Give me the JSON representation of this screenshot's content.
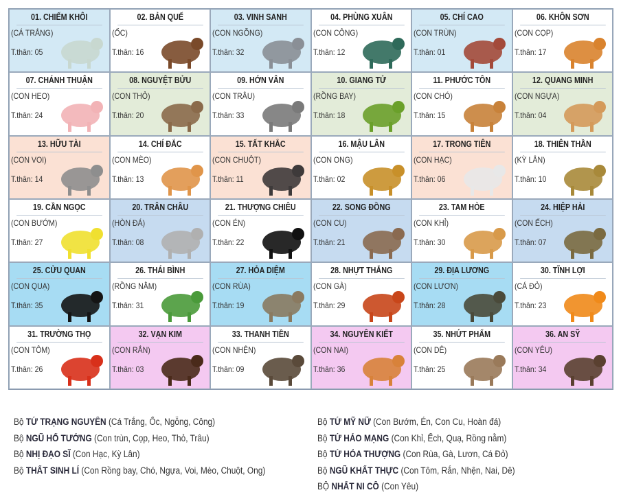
{
  "colors": {
    "white": "#ffffff",
    "blue": "#d3e9f5",
    "green": "#e3ecd9",
    "peach": "#fbe1d4",
    "steel": "#c6dbf0",
    "cyan": "#a7dcf3",
    "pink": "#f4c9f1"
  },
  "cells": [
    {
      "title": "01. CHIẾM KHÔI",
      "animal": "(CÁ TRẮNG)",
      "tthan": "T.thân: 05",
      "bg": "blue",
      "icon": "fish-icon",
      "color": "#c8d8d0"
    },
    {
      "title": "02. BẢN QUẾ",
      "animal": "(ỐC)",
      "tthan": "T.thân: 16",
      "bg": "white",
      "icon": "snail-icon",
      "color": "#7a4a2a"
    },
    {
      "title": "03. VINH SANH",
      "animal": "(CON NGỖNG)",
      "tthan": "T.thân: 32",
      "bg": "blue",
      "icon": "goose-icon",
      "color": "#8a8f96"
    },
    {
      "title": "04. PHÙNG XUÂN",
      "animal": "(CON CÔNG)",
      "tthan": "T.thân: 12",
      "bg": "white",
      "icon": "peacock-icon",
      "color": "#2f6a5a"
    },
    {
      "title": "05. CHÍ CAO",
      "animal": "(CON TRÙN)",
      "tthan": "T.thân: 01",
      "bg": "blue",
      "icon": "worm-icon",
      "color": "#a34a3a"
    },
    {
      "title": "06. KHÔN SƠN",
      "animal": "(CON CỌP)",
      "tthan": "T.thân: 17",
      "bg": "white",
      "icon": "tiger-icon",
      "color": "#d9832e"
    },
    {
      "title": "07. CHÁNH THUẬN",
      "animal": "(CON HEO)",
      "tthan": "T.thân: 24",
      "bg": "white",
      "icon": "pig-icon",
      "color": "#f2b3b6"
    },
    {
      "title": "08. NGUYỆT BỬU",
      "animal": "(CON THỎ)",
      "tthan": "T.thân: 20",
      "bg": "green",
      "icon": "rabbit-icon",
      "color": "#8a6a4a"
    },
    {
      "title": "09. HỚN VÂN",
      "animal": "(CON TRÂU)",
      "tthan": "T.thân: 33",
      "bg": "white",
      "icon": "buffalo-icon",
      "color": "#7a7a7a"
    },
    {
      "title": "10. GIANG TỬ",
      "animal": "(RỒNG BAY)",
      "tthan": "T.thân: 18",
      "bg": "green",
      "icon": "flying-dragon-icon",
      "color": "#6aa02a"
    },
    {
      "title": "11. PHƯỚC TÔN",
      "animal": "(CON CHÓ)",
      "tthan": "T.thân: 15",
      "bg": "white",
      "icon": "dog-icon",
      "color": "#c8823a"
    },
    {
      "title": "12. QUANG MINH",
      "animal": "(CON NGỰA)",
      "tthan": "T.thân: 04",
      "bg": "green",
      "icon": "horse-icon",
      "color": "#d49a5a"
    },
    {
      "title": "13. HỮU TÀI",
      "animal": "(CON VOI)",
      "tthan": "T.thân: 14",
      "bg": "peach",
      "icon": "elephant-icon",
      "color": "#8e8e8e"
    },
    {
      "title": "14. CHÍ ĐẮC",
      "animal": "(CON MÈO)",
      "tthan": "T.thân: 13",
      "bg": "white",
      "icon": "cat-icon",
      "color": "#e0954a"
    },
    {
      "title": "15. TẤT KHẮC",
      "animal": "(CON CHUỘT)",
      "tthan": "T.thân: 11",
      "bg": "peach",
      "icon": "rat-icon",
      "color": "#3e3a3a"
    },
    {
      "title": "16. MẬU LÂN",
      "animal": "(CON ONG)",
      "tthan": "T.thân: 02",
      "bg": "white",
      "icon": "bee-icon",
      "color": "#c8902a"
    },
    {
      "title": "17. TRONG TIÊN",
      "animal": "(CON HẠC)",
      "tthan": "T.thân: 06",
      "bg": "peach",
      "icon": "crane-icon",
      "color": "#e8e8e8"
    },
    {
      "title": "18. THIÊN THẦN",
      "animal": "(KỲ LÂN)",
      "tthan": "T.thân: 10",
      "bg": "white",
      "icon": "qilin-icon",
      "color": "#a8893a"
    },
    {
      "title": "19. CẦN NGỌC",
      "animal": "(CON BƯỚM)",
      "tthan": "T.thân: 27",
      "bg": "white",
      "icon": "butterfly-icon",
      "color": "#f0e030"
    },
    {
      "title": "20. TRÂN CHÂU",
      "animal": "(HÒN ĐÁ)",
      "tthan": "T.thân: 08",
      "bg": "steel",
      "icon": "rock-icon",
      "color": "#b0b0b0"
    },
    {
      "title": "21. THƯỢNG CHIÊU",
      "animal": "(CON ÉN)",
      "tthan": "T.thân: 22",
      "bg": "white",
      "icon": "swallow-icon",
      "color": "#111111"
    },
    {
      "title": "22. SONG ĐỒNG",
      "animal": "(CON CU)",
      "tthan": "T.thân: 21",
      "bg": "steel",
      "icon": "dove-icon",
      "color": "#8a6a50"
    },
    {
      "title": "23. TAM HÒE",
      "animal": "(CON KHỈ)",
      "tthan": "T.thân: 30",
      "bg": "white",
      "icon": "monkey-icon",
      "color": "#d89a4a"
    },
    {
      "title": "24. HIỆP HẢI",
      "animal": "(CON ẾCH)",
      "tthan": "T.thân: 07",
      "bg": "steel",
      "icon": "frog-icon",
      "color": "#7a6a40"
    },
    {
      "title": "25. CỬU QUAN",
      "animal": "(CON QUẠ)",
      "tthan": "T.thân: 35",
      "bg": "cyan",
      "icon": "crow-icon",
      "color": "#151515"
    },
    {
      "title": "26. THÁI BÌNH",
      "animal": "(RỒNG NẰM)",
      "tthan": "T.thân: 31",
      "bg": "white",
      "icon": "lying-dragon-icon",
      "color": "#4a9a3a"
    },
    {
      "title": "27. HỎA DIỆM",
      "animal": "(CON RÙA)",
      "tthan": "T.thân: 19",
      "bg": "cyan",
      "icon": "turtle-icon",
      "color": "#8a7a60"
    },
    {
      "title": "28. NHỰT THẮNG",
      "animal": "(CON GÀ)",
      "tthan": "T.thân: 29",
      "bg": "white",
      "icon": "rooster-icon",
      "color": "#c8461a"
    },
    {
      "title": "29. ĐỊA LƯƠNG",
      "animal": "(CON LƯƠN)",
      "tthan": "T.thân: 28",
      "bg": "cyan",
      "icon": "eel-icon",
      "color": "#4a4a3a"
    },
    {
      "title": "30. TĨNH LỢI",
      "animal": "(CÁ ĐỎ)",
      "tthan": "T.thân: 23",
      "bg": "white",
      "icon": "goldfish-icon",
      "color": "#f08a1a"
    },
    {
      "title": "31. TRƯỜNG THỌ",
      "animal": "(CON TÔM)",
      "tthan": "T.thân: 26",
      "bg": "white",
      "icon": "shrimp-icon",
      "color": "#d8301a"
    },
    {
      "title": "32. VẠN KIM",
      "animal": "(CON RẮN)",
      "tthan": "T.thân: 03",
      "bg": "pink",
      "icon": "snake-icon",
      "color": "#4a2a1a"
    },
    {
      "title": "33. THANH TIỀN",
      "animal": "(CON NHỆN)",
      "tthan": "T.thân: 09",
      "bg": "white",
      "icon": "spider-icon",
      "color": "#5a4a3a"
    },
    {
      "title": "34. NGUYÊN KIẾT",
      "animal": "(CON NAI)",
      "tthan": "T.thân: 36",
      "bg": "pink",
      "icon": "deer-icon",
      "color": "#d8823a"
    },
    {
      "title": "35. NHỨT PHẨM",
      "animal": "(CON DÊ)",
      "tthan": "T.thân: 25",
      "bg": "white",
      "icon": "goat-icon",
      "color": "#9a7a5a"
    },
    {
      "title": "36. AN SỸ",
      "animal": "(CON YÊU)",
      "tthan": "T.thân: 34",
      "bg": "pink",
      "icon": "demon-icon",
      "color": "#5a4030"
    }
  ],
  "legend": {
    "left": [
      {
        "prefix": "Bộ",
        "name": "TỨ TRẠNG NGUYÊN",
        "members": "(Cá Trắng, Ốc, Ngỗng, Công)"
      },
      {
        "prefix": "Bộ",
        "name": "NGŨ HỔ TƯỚNG",
        "members": "(Con trùn, Cọp, Heo, Thỏ, Trâu)"
      },
      {
        "prefix": "Bộ",
        "name": "NHỊ ĐẠO SĨ",
        "members": "(Con Hạc, Kỳ Lân)"
      },
      {
        "prefix": "Bộ",
        "name": "THẤT SINH LÍ",
        "members": "(Con Rồng bay, Chó, Ngựa, Voi, Mèo, Chuột, Ong)"
      }
    ],
    "right": [
      {
        "prefix": "Bộ",
        "name": "TỨ MỸ NỮ",
        "members": "(Con Bướm, Én, Con Cu, Hoàn đá)"
      },
      {
        "prefix": "Bộ",
        "name": "TỨ HẢO MẠNG",
        "members": "(Con Khỉ, Ếch, Quạ, Rồng nằm)"
      },
      {
        "prefix": "Bộ",
        "name": "TỨ HỎA THƯỢNG",
        "members": "(Con Rùa, Gà, Lươn, Cá Đỏ)"
      },
      {
        "prefix": "Bộ",
        "name": "NGŨ KHẤT THỰC",
        "members": "(Con Tôm, Rắn, Nhện, Nai, Dê)"
      },
      {
        "prefix": "BỘ",
        "name": "NHẤT NI CÔ",
        "members": "(Con Yêu)"
      }
    ]
  }
}
